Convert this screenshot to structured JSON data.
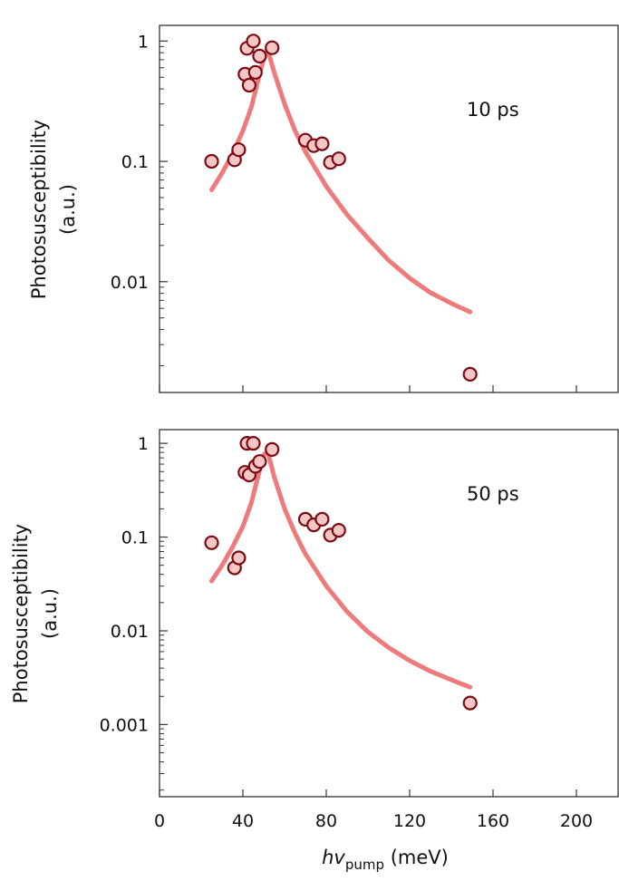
{
  "chart_data": [
    {
      "type": "scatter",
      "annotation": "10 ps",
      "ylabel_line1": "Photosusceptibility",
      "ylabel_line2": "(a.u.)",
      "yscale": "log",
      "ylim": [
        0.0012,
        1.35
      ],
      "xlim": [
        0,
        220
      ],
      "yticks": [
        1,
        0.1,
        0.01
      ],
      "ytick_labels": [
        "1",
        "0.1",
        "0.01"
      ],
      "colors": {
        "marker_fill": "#f4c6c6",
        "marker_edge": "#7a0b12",
        "fit_line": "#ee7b7b"
      },
      "series": [
        {
          "kind": "points",
          "x": [
            25,
            36,
            38,
            41,
            42,
            43,
            45,
            46,
            48,
            54,
            70,
            74,
            78,
            82,
            86,
            149
          ],
          "y": [
            0.1,
            0.103,
            0.125,
            0.53,
            0.87,
            0.43,
            1.0,
            0.55,
            0.75,
            0.88,
            0.15,
            0.135,
            0.14,
            0.098,
            0.105,
            0.0017
          ]
        },
        {
          "kind": "fit",
          "x": [
            25,
            30,
            35,
            40,
            44,
            47,
            50,
            52,
            55,
            60,
            65,
            70,
            80,
            90,
            100,
            110,
            120,
            130,
            140,
            149
          ],
          "y": [
            0.058,
            0.08,
            0.115,
            0.18,
            0.28,
            0.45,
            0.72,
            0.84,
            0.55,
            0.3,
            0.18,
            0.12,
            0.062,
            0.036,
            0.023,
            0.015,
            0.0107,
            0.0081,
            0.0066,
            0.0056
          ]
        }
      ]
    },
    {
      "type": "scatter",
      "annotation": "50 ps",
      "ylabel_line1": "Photosusceptibility",
      "ylabel_line2": "(a.u.)",
      "xlabel_main": "hv",
      "xlabel_sub": "pump",
      "xlabel_unit": " (meV)",
      "yscale": "log",
      "ylim": [
        0.00017,
        1.4
      ],
      "xlim": [
        0,
        220
      ],
      "xticks": [
        0,
        40,
        80,
        120,
        160,
        200
      ],
      "xtick_labels": [
        "0",
        "40",
        "80",
        "120",
        "160",
        "200"
      ],
      "yticks": [
        1,
        0.1,
        0.01,
        0.001
      ],
      "ytick_labels": [
        "1",
        "0.1",
        "0.01",
        "0.001"
      ],
      "colors": {
        "marker_fill": "#f4c6c6",
        "marker_edge": "#7a0b12",
        "fit_line": "#ee7b7b"
      },
      "series": [
        {
          "kind": "points",
          "x": [
            25,
            36,
            38,
            41,
            42,
            43,
            45,
            46,
            48,
            54,
            70,
            74,
            78,
            82,
            86,
            149
          ],
          "y": [
            0.087,
            0.047,
            0.06,
            0.49,
            1.0,
            0.46,
            1.0,
            0.57,
            0.64,
            0.86,
            0.155,
            0.135,
            0.155,
            0.105,
            0.118,
            0.0017
          ]
        },
        {
          "kind": "fit",
          "x": [
            25,
            30,
            35,
            40,
            44,
            47,
            50,
            52,
            55,
            60,
            65,
            70,
            80,
            90,
            100,
            110,
            120,
            130,
            140,
            149
          ],
          "y": [
            0.034,
            0.05,
            0.078,
            0.13,
            0.23,
            0.42,
            0.76,
            0.8,
            0.44,
            0.2,
            0.11,
            0.066,
            0.03,
            0.016,
            0.0097,
            0.0066,
            0.0048,
            0.0037,
            0.003,
            0.0025
          ]
        }
      ]
    }
  ]
}
